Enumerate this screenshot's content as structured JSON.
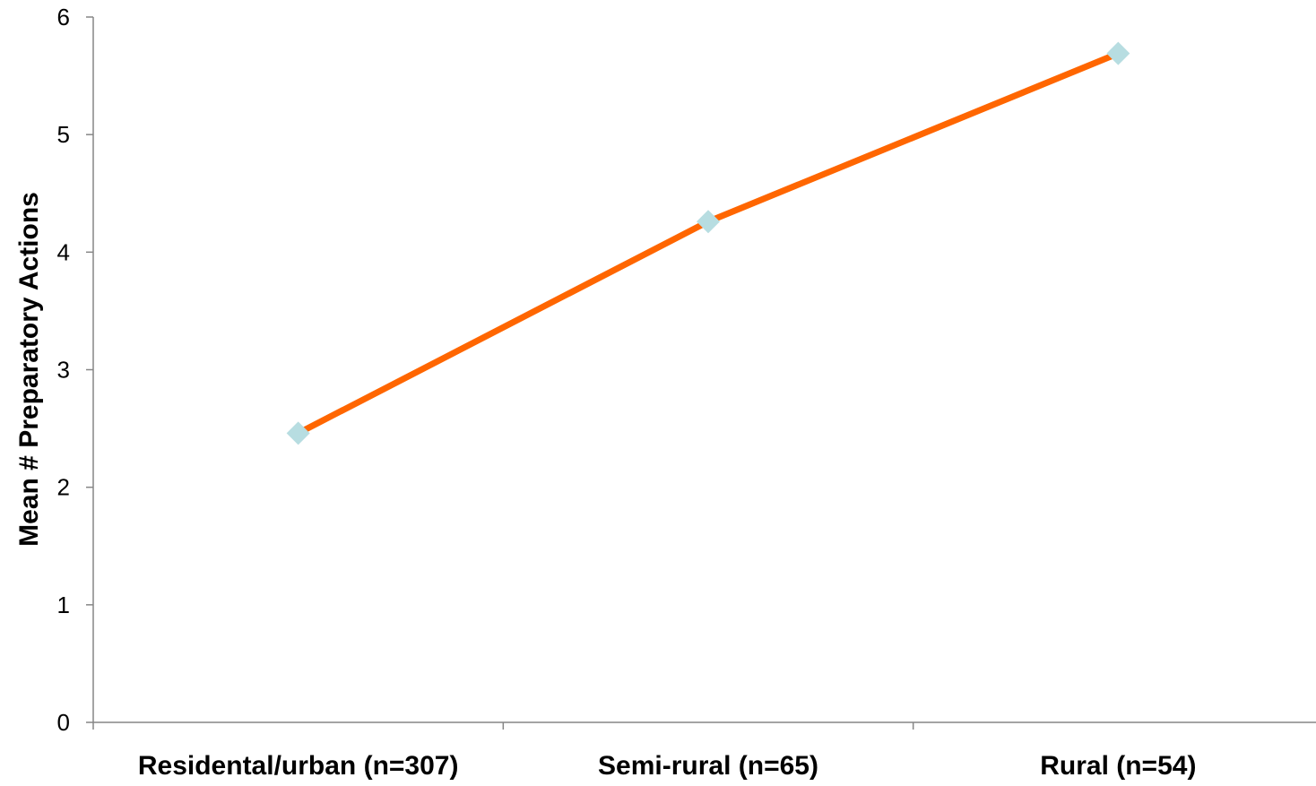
{
  "chart_data": {
    "type": "line",
    "title": "",
    "xlabel": "",
    "ylabel": "Mean # Preparatory Actions",
    "categories": [
      "Residental/urban (n=307)",
      "Semi-rural (n=65)",
      "Rural (n=54)"
    ],
    "series": [
      {
        "values": [
          2.46,
          4.26,
          5.69
        ]
      }
    ],
    "ylim": [
      0,
      6
    ],
    "yticks": [
      "0",
      "1",
      "2",
      "3",
      "4",
      "5",
      "6"
    ],
    "grid": false,
    "legend": "none"
  },
  "colors": {
    "line": "#ff6600",
    "marker": "#b7dde1",
    "axis": "#868686"
  },
  "marker_shape": "diamond"
}
